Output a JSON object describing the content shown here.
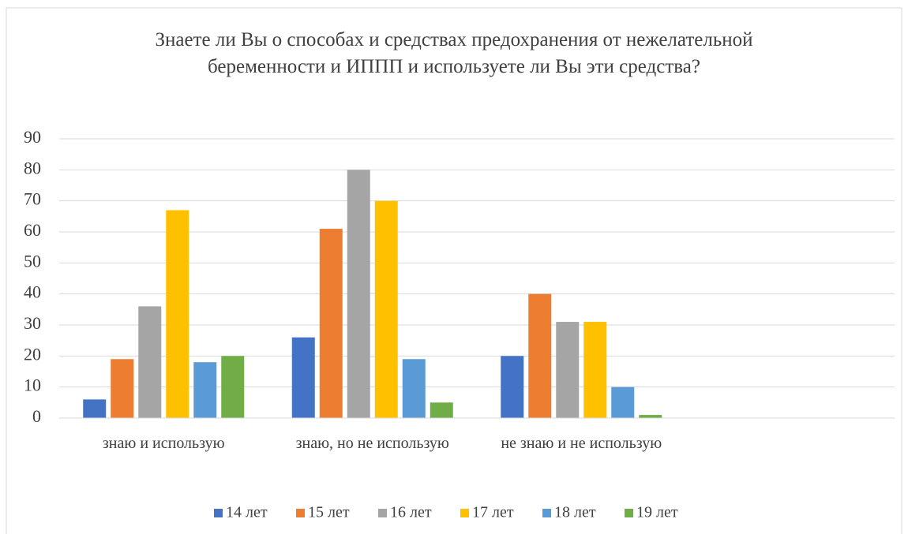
{
  "chart_data": {
    "type": "bar",
    "title": "Знаете ли Вы о способах и средствах предохранения от нежелательной беременности и ИППП и используете ли Вы эти средства?",
    "categories": [
      "знаю и использую",
      "знаю, но не использую",
      "не знаю и не использую",
      null
    ],
    "series": [
      {
        "name": "14 лет",
        "color": "#4472c4",
        "values": [
          6,
          26,
          20,
          null
        ]
      },
      {
        "name": "15 лет",
        "color": "#ed7d31",
        "values": [
          19,
          61,
          40,
          null
        ]
      },
      {
        "name": "16 лет",
        "color": "#a5a5a5",
        "values": [
          36,
          80,
          31,
          null
        ]
      },
      {
        "name": "17 лет",
        "color": "#ffc000",
        "values": [
          67,
          70,
          31,
          null
        ]
      },
      {
        "name": "18 лет",
        "color": "#5b9bd5",
        "values": [
          18,
          19,
          10,
          null
        ]
      },
      {
        "name": "19 лет",
        "color": "#70ad47",
        "values": [
          20,
          5,
          1,
          null
        ]
      }
    ],
    "ylim": [
      0,
      90
    ],
    "yticks": [
      0,
      10,
      20,
      30,
      40,
      50,
      60,
      70,
      80,
      90
    ],
    "grid": true,
    "legend": "bottom"
  }
}
